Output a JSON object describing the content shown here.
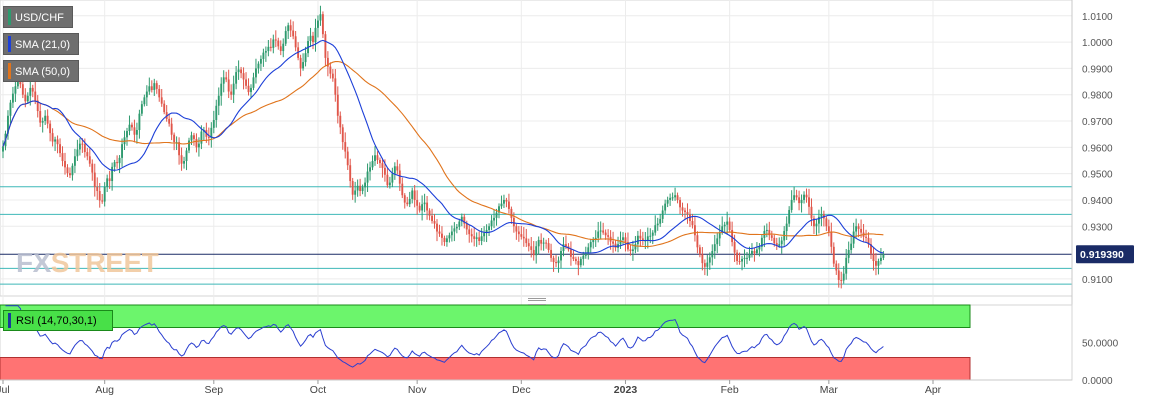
{
  "symbol": "USD/CHF",
  "indicators": [
    {
      "label": "SMA (21,0)",
      "color": "#1c3fd8"
    },
    {
      "label": "SMA (50,0)",
      "color": "#e0741c"
    }
  ],
  "rsi_label": "RSI (14,70,30,1)",
  "watermark": {
    "part1": "FX",
    "part2": "STREET"
  },
  "current_price_label": "0.919390",
  "colors": {
    "up": "#2e9a6e",
    "down": "#e0564a",
    "sma21": "#1c3fd8",
    "sma50": "#e0741c",
    "rsi_line": "#2b3fd0",
    "overbought": "#6cf56c",
    "oversold": "#ff7373",
    "hline": "#3fb8b8",
    "price_line": "#1a2b66"
  },
  "chart_data": {
    "type": "candlestick",
    "ylim": [
      0.9035,
      1.016
    ],
    "y_ticks": [
      "1.0100",
      "1.0000",
      "0.9900",
      "0.9800",
      "0.9700",
      "0.9600",
      "0.9500",
      "0.9400",
      "0.9300",
      "0.9100"
    ],
    "y_tick_values": [
      1.01,
      1.0,
      0.99,
      0.98,
      0.97,
      0.96,
      0.95,
      0.94,
      0.93,
      0.91
    ],
    "x_tick_labels": [
      "Jul",
      "Aug",
      "Sep",
      "Oct",
      "Nov",
      "Dec",
      "2023",
      "Feb",
      "Mar",
      "Apr"
    ],
    "x_tick_bar_index": [
      0,
      41,
      85,
      127,
      167,
      209,
      251,
      293,
      333,
      375
    ],
    "horizontal_levels": [
      0.945,
      0.9345,
      0.914,
      0.908
    ],
    "current_price": 0.91939,
    "closes": [
      0.9604,
      0.9652,
      0.972,
      0.977,
      0.9804,
      0.9832,
      0.9852,
      0.984,
      0.98,
      0.9775,
      0.9796,
      0.9826,
      0.9812,
      0.9778,
      0.9738,
      0.9694,
      0.97,
      0.972,
      0.969,
      0.9654,
      0.9622,
      0.963,
      0.9612,
      0.9578,
      0.9548,
      0.9524,
      0.9502,
      0.9494,
      0.953,
      0.9566,
      0.9592,
      0.9614,
      0.9612,
      0.9582,
      0.9566,
      0.9538,
      0.9504,
      0.945,
      0.9434,
      0.9398,
      0.9394,
      0.945,
      0.9482,
      0.9472,
      0.9526,
      0.9544,
      0.954,
      0.956,
      0.9612,
      0.9638,
      0.9662,
      0.9686,
      0.9676,
      0.9648,
      0.9666,
      0.9728,
      0.9764,
      0.979,
      0.9812,
      0.9832,
      0.9818,
      0.9844,
      0.9822,
      0.979,
      0.9766,
      0.9734,
      0.9708,
      0.969,
      0.9648,
      0.962,
      0.962,
      0.957,
      0.9538,
      0.9548,
      0.9588,
      0.9626,
      0.9646,
      0.9632,
      0.96,
      0.9614,
      0.966,
      0.9666,
      0.964,
      0.9636,
      0.9674,
      0.9704,
      0.9758,
      0.9796,
      0.9842,
      0.9866,
      0.9858,
      0.9812,
      0.98,
      0.9842,
      0.9886,
      0.9896,
      0.9882,
      0.9858,
      0.9834,
      0.981,
      0.9826,
      0.9866,
      0.99,
      0.9918,
      0.9936,
      0.996,
      0.9966,
      0.9982,
      0.9978,
      1.001,
      1.0006,
      0.9984,
      0.9966,
      0.9994,
      1.0042,
      1.0064,
      1.0044,
      1.0022,
      0.998,
      0.994,
      0.99,
      0.9924,
      0.9958,
      1.0004,
      1.0024,
      1.0,
      1.0054,
      1.0082,
      1.0106,
      1.003,
      0.994,
      0.9907,
      0.988,
      0.9862,
      0.98,
      0.972,
      0.9676,
      0.962,
      0.9584,
      0.9532,
      0.9472,
      0.942,
      0.9436,
      0.9454,
      0.9434,
      0.9448,
      0.9466,
      0.9508,
      0.9524,
      0.9548,
      0.957,
      0.9552,
      0.954,
      0.9522,
      0.9496,
      0.9456,
      0.9466,
      0.95,
      0.9528,
      0.9512,
      0.9462,
      0.9418,
      0.939,
      0.9384,
      0.9404,
      0.9436,
      0.94,
      0.9378,
      0.936,
      0.9384,
      0.939,
      0.936,
      0.934,
      0.932,
      0.931,
      0.928,
      0.9272,
      0.9256,
      0.924,
      0.9254,
      0.9266,
      0.928,
      0.9292,
      0.9298,
      0.9318,
      0.9336,
      0.931,
      0.9288,
      0.927,
      0.9262,
      0.9252,
      0.9258,
      0.9244,
      0.9262,
      0.9274,
      0.9286,
      0.93,
      0.9322,
      0.9332,
      0.9352,
      0.9376,
      0.9386,
      0.94,
      0.9394,
      0.9366,
      0.9332,
      0.93,
      0.928,
      0.927,
      0.926,
      0.9254,
      0.9236,
      0.9224,
      0.921,
      0.919,
      0.9224,
      0.9248,
      0.9234,
      0.9238,
      0.9236,
      0.921,
      0.918,
      0.9164,
      0.916,
      0.917,
      0.9206,
      0.9232,
      0.9224,
      0.9212,
      0.9184,
      0.9176,
      0.9168,
      0.9152,
      0.9176,
      0.9188,
      0.9196,
      0.922,
      0.924,
      0.925,
      0.9256,
      0.928,
      0.9284,
      0.9276,
      0.9266,
      0.926,
      0.9242,
      0.9234,
      0.9218,
      0.9232,
      0.9248,
      0.9258,
      0.924,
      0.9212,
      0.9206,
      0.9212,
      0.9232,
      0.9264,
      0.9254,
      0.9244,
      0.9246,
      0.9262,
      0.9264,
      0.9276,
      0.9304,
      0.931,
      0.9328,
      0.936,
      0.9386,
      0.94,
      0.9408,
      0.941,
      0.9418,
      0.94,
      0.9372,
      0.936,
      0.9354,
      0.9346,
      0.932,
      0.9304,
      0.9266,
      0.922,
      0.9194,
      0.916,
      0.9146,
      0.9162,
      0.9182,
      0.9206,
      0.9232,
      0.9254,
      0.9276,
      0.93,
      0.9306,
      0.9318,
      0.9286,
      0.924,
      0.92,
      0.9168,
      0.9166,
      0.9176,
      0.918,
      0.918,
      0.9194,
      0.9206,
      0.9198,
      0.9212,
      0.9222,
      0.9256,
      0.9282,
      0.9286,
      0.9266,
      0.9256,
      0.9236,
      0.9226,
      0.9232,
      0.9246,
      0.9282,
      0.931,
      0.9362,
      0.94,
      0.9418,
      0.941,
      0.9388,
      0.94,
      0.942,
      0.941,
      0.9374,
      0.933,
      0.93,
      0.931,
      0.9336,
      0.9346,
      0.933,
      0.93,
      0.928,
      0.9222,
      0.9158,
      0.9132,
      0.9096,
      0.9094,
      0.912,
      0.918,
      0.921,
      0.9234,
      0.928,
      0.93,
      0.929,
      0.9276,
      0.926,
      0.9256,
      0.9232,
      0.9196,
      0.9168,
      0.915,
      0.9168,
      0.918,
      0.9194
    ],
    "rsi": {
      "ylim": [
        0,
        100
      ],
      "y_ticks": [
        "50.0000",
        "0.0000"
      ],
      "y_tick_values": [
        50,
        0
      ],
      "overbought": 70,
      "oversold": 30
    },
    "visible_bars": 390
  }
}
